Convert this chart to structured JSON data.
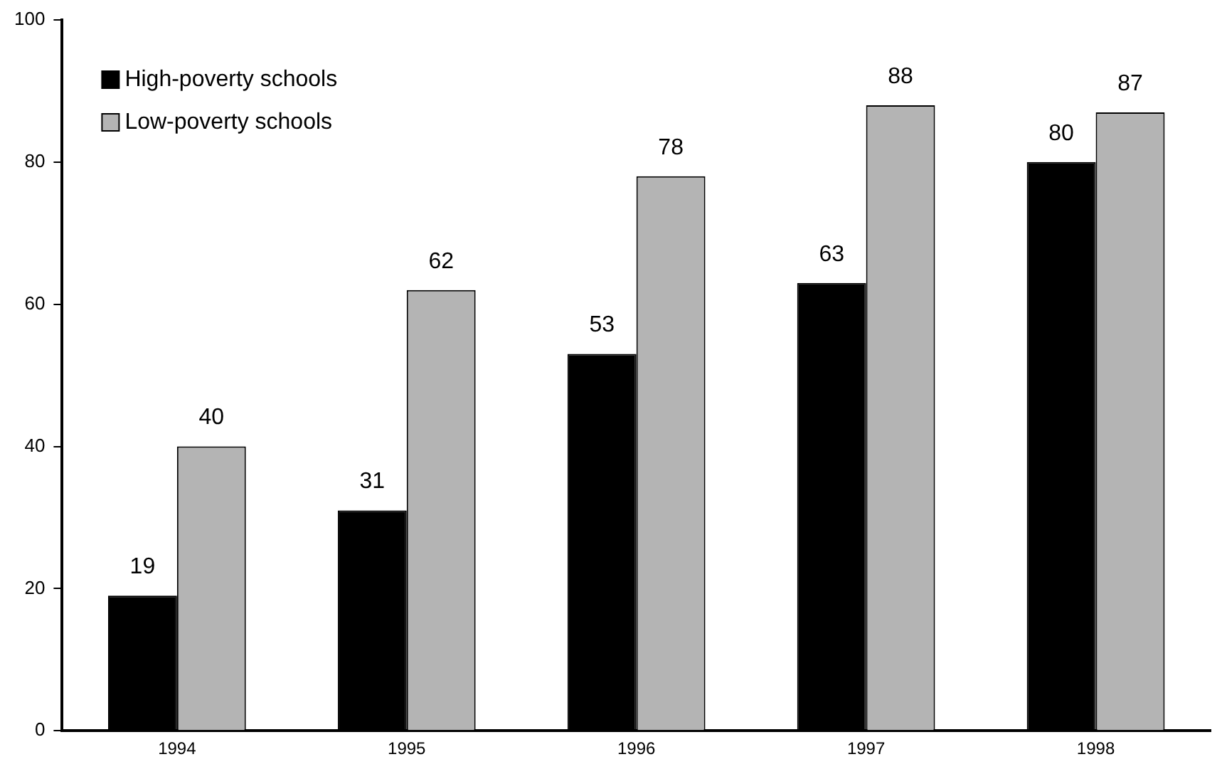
{
  "chart_data": {
    "type": "bar",
    "categories": [
      "1994",
      "1995",
      "1996",
      "1997",
      "1998"
    ],
    "series": [
      {
        "name": "High-poverty schools",
        "color": "#000000",
        "values": [
          19,
          31,
          53,
          63,
          80
        ]
      },
      {
        "name": "Low-poverty schools",
        "color": "#b4b4b4",
        "values": [
          40,
          62,
          78,
          88,
          87
        ]
      }
    ],
    "ylim": [
      0,
      100
    ],
    "yticks": [
      0,
      20,
      40,
      60,
      80,
      100
    ],
    "grid": false,
    "legend": "top left",
    "data_labels": true
  }
}
